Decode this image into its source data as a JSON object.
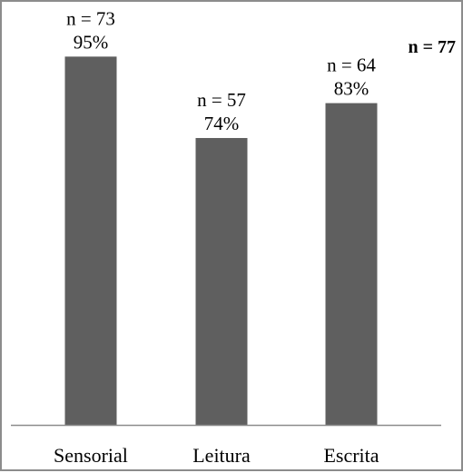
{
  "chart_data": {
    "type": "bar",
    "categories": [
      "Sensorial",
      "Leitura",
      "Escrita"
    ],
    "values": [
      95,
      74,
      83
    ],
    "counts": [
      "n = 73",
      "n = 57",
      "n = 64"
    ],
    "percent_labels": [
      "95%",
      "74%",
      "83%"
    ],
    "total_label": "n = 77",
    "ylim": [
      0,
      100
    ],
    "grid": false,
    "legend": "none",
    "bar_color": "#5f5f5f",
    "axis_color": "#8c8c8c"
  }
}
